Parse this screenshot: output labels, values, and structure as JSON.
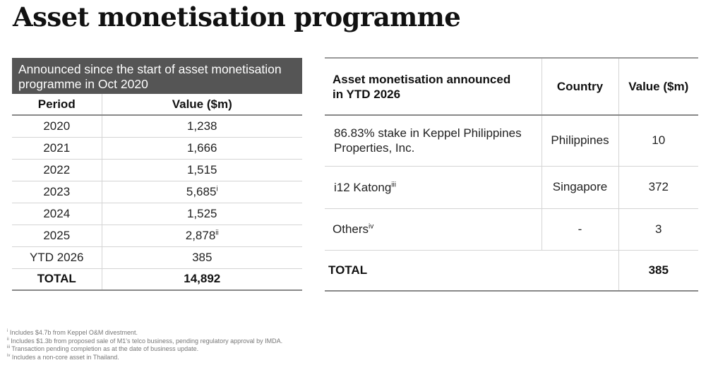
{
  "title": "Asset monetisation programme",
  "left_table": {
    "header": "Announced since the start of asset monetisation programme in Oct 2020",
    "columns": [
      "Period",
      "Value ($m)"
    ],
    "rows": [
      {
        "period": "2020",
        "value": "1,238",
        "note": ""
      },
      {
        "period": "2021",
        "value": "1,666",
        "note": ""
      },
      {
        "period": "2022",
        "value": "1,515",
        "note": ""
      },
      {
        "period": "2023",
        "value": "5,685",
        "note": "i"
      },
      {
        "period": "2024",
        "value": "1,525",
        "note": ""
      },
      {
        "period": "2025",
        "value": "2,878",
        "note": "ii"
      },
      {
        "period": "YTD 2026",
        "value": "385",
        "note": ""
      }
    ],
    "total": {
      "label": "TOTAL",
      "value": "14,892"
    }
  },
  "right_table": {
    "columns": [
      "Asset monetisation announced in YTD 2026",
      "Country",
      "Value ($m)"
    ],
    "rows": [
      {
        "asset": "86.83% stake in Keppel Philippines Properties, Inc.",
        "note": "",
        "country": "Philippines",
        "value": "10"
      },
      {
        "asset": "i12 Katong",
        "note": "iii",
        "country": "Singapore",
        "value": "372"
      },
      {
        "asset": "Others",
        "note": "iv",
        "country": "-",
        "value": "3"
      }
    ],
    "total": {
      "label": "TOTAL",
      "value": "385"
    }
  },
  "footnotes": [
    {
      "mark": "i",
      "text": "Includes $4.7b from Keppel O&M divestment."
    },
    {
      "mark": "ii",
      "text": "Includes $1.3b from proposed sale of M1's telco business, pending regulatory approval by IMDA."
    },
    {
      "mark": "iii",
      "text": "Transaction pending completion as at the date of business update."
    },
    {
      "mark": "iv",
      "text": "Includes a non-core asset in Thailand."
    }
  ]
}
